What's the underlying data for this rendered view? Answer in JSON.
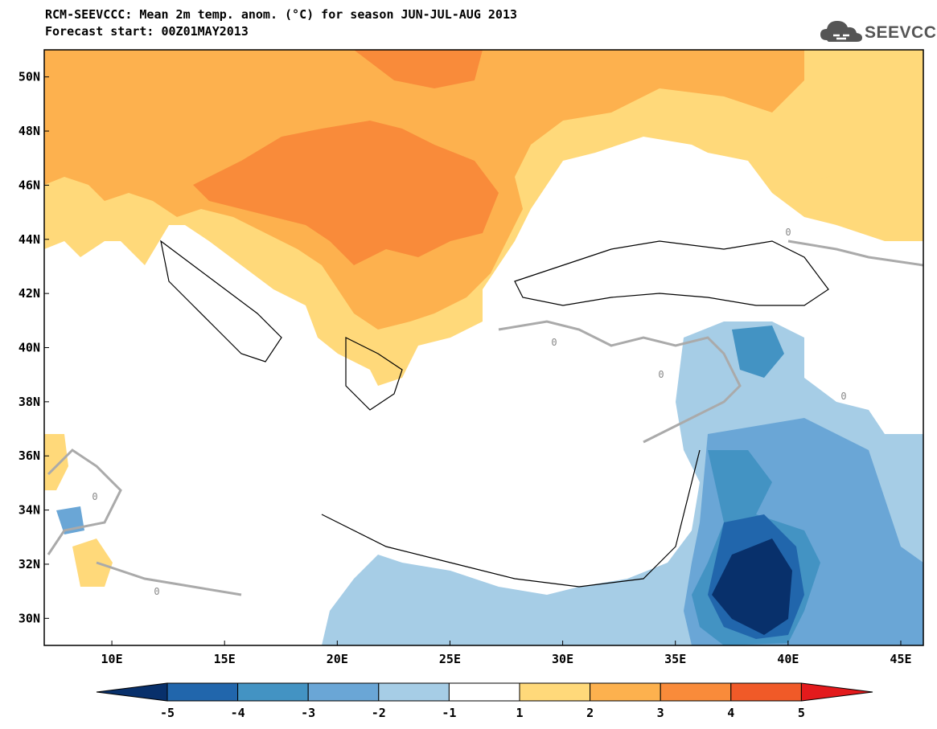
{
  "header": {
    "title_line1": "RCM-SEEVCCC: Mean 2m temp. anom. (°C) for season JUN-JUL-AUG 2013",
    "title_line2": "Forecast start: 00Z01MAY2013"
  },
  "logo": {
    "text": "SEEVCCC",
    "icon": "cloud-icon"
  },
  "map": {
    "lat_range": [
      29,
      51
    ],
    "lon_range": [
      7,
      46
    ],
    "lat_ticks": [
      "30N",
      "32N",
      "34N",
      "36N",
      "38N",
      "40N",
      "42N",
      "44N",
      "46N",
      "48N",
      "50N"
    ],
    "lat_values": [
      30,
      32,
      34,
      36,
      38,
      40,
      42,
      44,
      46,
      48,
      50
    ],
    "lon_ticks": [
      "10E",
      "15E",
      "20E",
      "25E",
      "30E",
      "35E",
      "40E",
      "45E"
    ],
    "lon_values": [
      10,
      15,
      20,
      25,
      30,
      35,
      40,
      45
    ],
    "contour_label": "0"
  },
  "colorbar": {
    "labels": [
      "-5",
      "-4",
      "-3",
      "-2",
      "-1",
      "1",
      "2",
      "3",
      "4",
      "5"
    ],
    "colors": [
      "#08306b",
      "#2166ac",
      "#4393c3",
      "#6aa6d6",
      "#a6cde6",
      "#ffffff",
      "#ffd97a",
      "#fdb14e",
      "#f98b3a",
      "#f05a28",
      "#e31a1c"
    ]
  }
}
